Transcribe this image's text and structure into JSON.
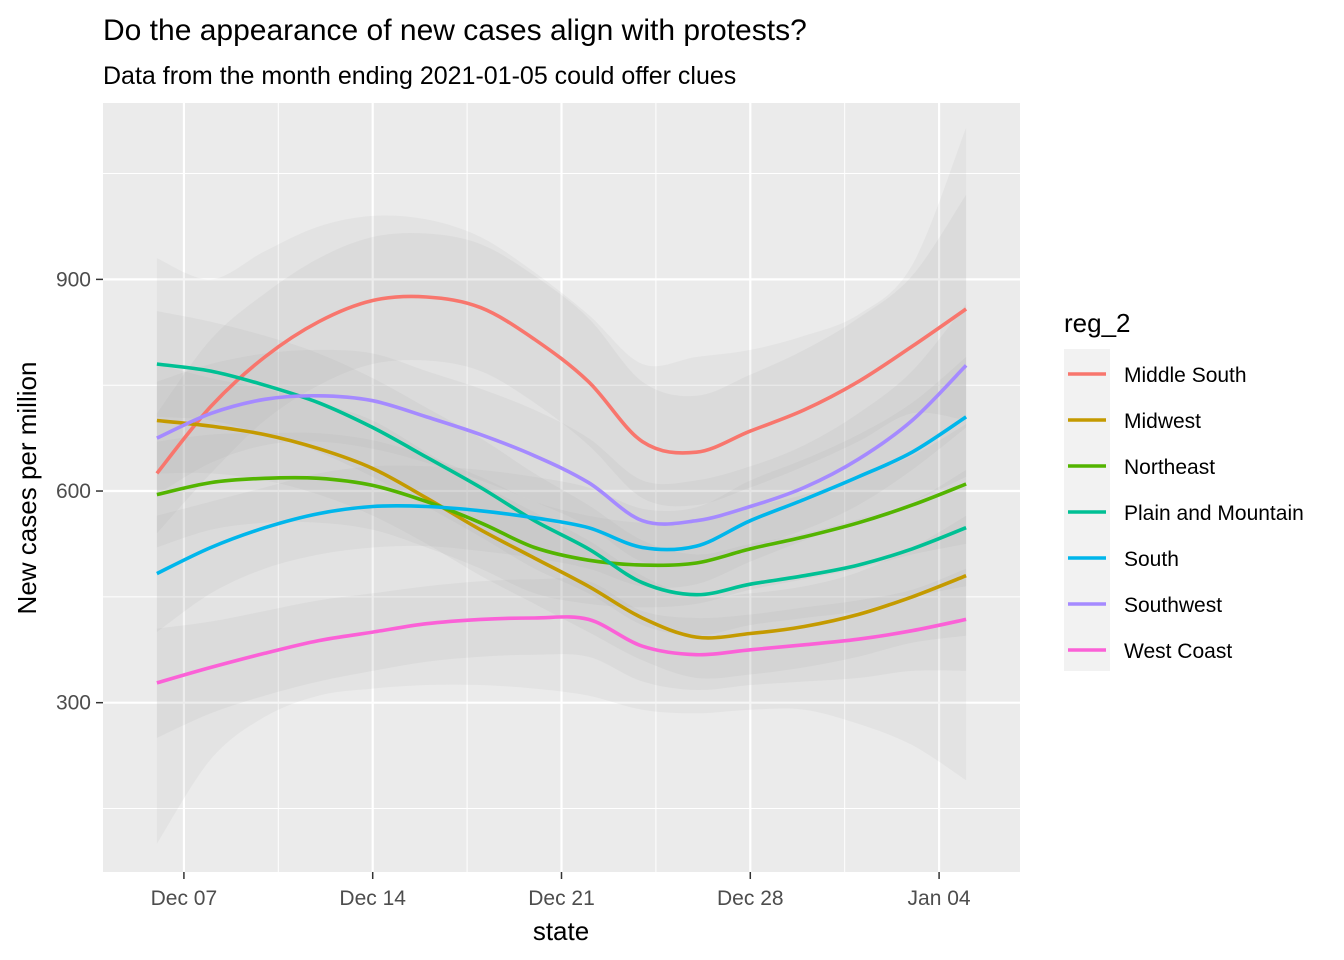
{
  "chart_data": {
    "type": "line",
    "title": "Do the appearance of new cases align with protests?",
    "subtitle": "Data from the month ending  2021-01-05  could offer clues",
    "xlabel": "state",
    "ylabel": "New cases per million",
    "x_ticks": [
      {
        "date": "2020-12-07",
        "label": "Dec 07"
      },
      {
        "date": "2020-12-14",
        "label": "Dec 14"
      },
      {
        "date": "2020-12-21",
        "label": "Dec 21"
      },
      {
        "date": "2020-12-28",
        "label": "Dec 28"
      },
      {
        "date": "2021-01-04",
        "label": "Jan 04"
      }
    ],
    "xlim": [
      "2020-12-04",
      "2021-01-07"
    ],
    "ylim": [
      60,
      1150
    ],
    "y_ticks": [
      300,
      600,
      900
    ],
    "grid": true,
    "legend": {
      "title": "reg_2",
      "position": "right"
    },
    "x": [
      "2020-12-06",
      "2020-12-08",
      "2020-12-10",
      "2020-12-12",
      "2020-12-14",
      "2020-12-16",
      "2020-12-18",
      "2020-12-20",
      "2020-12-22",
      "2020-12-24",
      "2020-12-26",
      "2020-12-28",
      "2020-12-30",
      "2021-01-01",
      "2021-01-03",
      "2021-01-05"
    ],
    "series": [
      {
        "name": "Middle South",
        "color": "#F8766D",
        "values": [
          625,
          720,
          790,
          840,
          870,
          875,
          860,
          815,
          755,
          670,
          655,
          685,
          715,
          755,
          805,
          858
        ],
        "lower": [
          540,
          625,
          700,
          750,
          780,
          785,
          770,
          725,
          665,
          590,
          580,
          605,
          635,
          670,
          710,
          700
        ],
        "upper": [
          710,
          815,
          880,
          930,
          960,
          965,
          950,
          905,
          845,
          755,
          735,
          765,
          800,
          845,
          905,
          1020
        ]
      },
      {
        "name": "Midwest",
        "color": "#C49A00",
        "values": [
          700,
          692,
          680,
          660,
          632,
          590,
          545,
          505,
          465,
          420,
          393,
          398,
          408,
          425,
          450,
          480
        ],
        "lower": [
          625,
          625,
          615,
          595,
          565,
          525,
          480,
          440,
          400,
          360,
          335,
          340,
          350,
          365,
          385,
          395
        ],
        "upper": [
          780,
          760,
          745,
          725,
          700,
          655,
          610,
          570,
          530,
          480,
          450,
          455,
          465,
          485,
          520,
          565
        ]
      },
      {
        "name": "Northeast",
        "color": "#53B400",
        "values": [
          595,
          612,
          618,
          618,
          608,
          585,
          555,
          520,
          502,
          495,
          498,
          518,
          535,
          555,
          580,
          610
        ],
        "lower": [
          520,
          545,
          555,
          555,
          545,
          520,
          490,
          455,
          440,
          435,
          440,
          460,
          475,
          490,
          510,
          525
        ],
        "upper": [
          670,
          680,
          682,
          682,
          672,
          650,
          620,
          585,
          565,
          555,
          557,
          577,
          595,
          620,
          650,
          695
        ]
      },
      {
        "name": "Plain and Mountain",
        "color": "#00C094",
        "values": [
          780,
          770,
          750,
          725,
          690,
          648,
          605,
          558,
          518,
          470,
          453,
          468,
          480,
          495,
          518,
          548
        ],
        "lower": [
          705,
          700,
          680,
          655,
          620,
          578,
          535,
          490,
          455,
          410,
          395,
          410,
          420,
          430,
          450,
          465
        ],
        "upper": [
          855,
          840,
          820,
          795,
          760,
          718,
          675,
          625,
          580,
          530,
          510,
          525,
          540,
          560,
          585,
          630
        ]
      },
      {
        "name": "South",
        "color": "#00B6EB",
        "values": [
          483,
          520,
          548,
          568,
          578,
          578,
          572,
          562,
          548,
          520,
          522,
          558,
          588,
          620,
          655,
          705
        ],
        "lower": [
          400,
          455,
          490,
          510,
          520,
          522,
          515,
          505,
          490,
          465,
          468,
          500,
          530,
          558,
          585,
          620
        ],
        "upper": [
          565,
          585,
          605,
          625,
          635,
          635,
          630,
          620,
          605,
          575,
          577,
          615,
          645,
          680,
          725,
          790
        ]
      },
      {
        "name": "Southwest",
        "color": "#A58AFF",
        "values": [
          675,
          710,
          730,
          735,
          728,
          705,
          680,
          650,
          612,
          558,
          558,
          578,
          605,
          645,
          700,
          778
        ],
        "lower": [
          595,
          640,
          665,
          670,
          660,
          640,
          615,
          585,
          550,
          500,
          500,
          520,
          545,
          580,
          630,
          690
        ],
        "upper": [
          755,
          780,
          795,
          800,
          795,
          770,
          745,
          715,
          675,
          615,
          615,
          635,
          665,
          710,
          770,
          865
        ]
      },
      {
        "name": "West Coast",
        "color": "#FB61D7",
        "values": [
          328,
          350,
          370,
          388,
          400,
          412,
          418,
          420,
          418,
          380,
          368,
          375,
          382,
          390,
          402,
          418
        ],
        "lower": [
          250,
          285,
          310,
          330,
          345,
          358,
          365,
          368,
          365,
          330,
          318,
          325,
          330,
          335,
          345,
          345
        ],
        "upper": [
          405,
          415,
          430,
          445,
          455,
          465,
          472,
          475,
          472,
          430,
          420,
          425,
          435,
          445,
          460,
          490
        ]
      }
    ],
    "shared_band": {
      "lower": [
        100,
        220,
        280,
        310,
        320,
        325,
        325,
        320,
        310,
        290,
        285,
        290,
        290,
        270,
        240,
        190
      ],
      "upper": [
        930,
        900,
        940,
        975,
        990,
        985,
        960,
        910,
        850,
        780,
        790,
        800,
        820,
        850,
        920,
        1115
      ]
    },
    "colors": {
      "panel": "#EBEBEB",
      "grid": "#FFFFFF",
      "band": "#999999",
      "legend_key_bg": "#F2F2F2"
    }
  }
}
